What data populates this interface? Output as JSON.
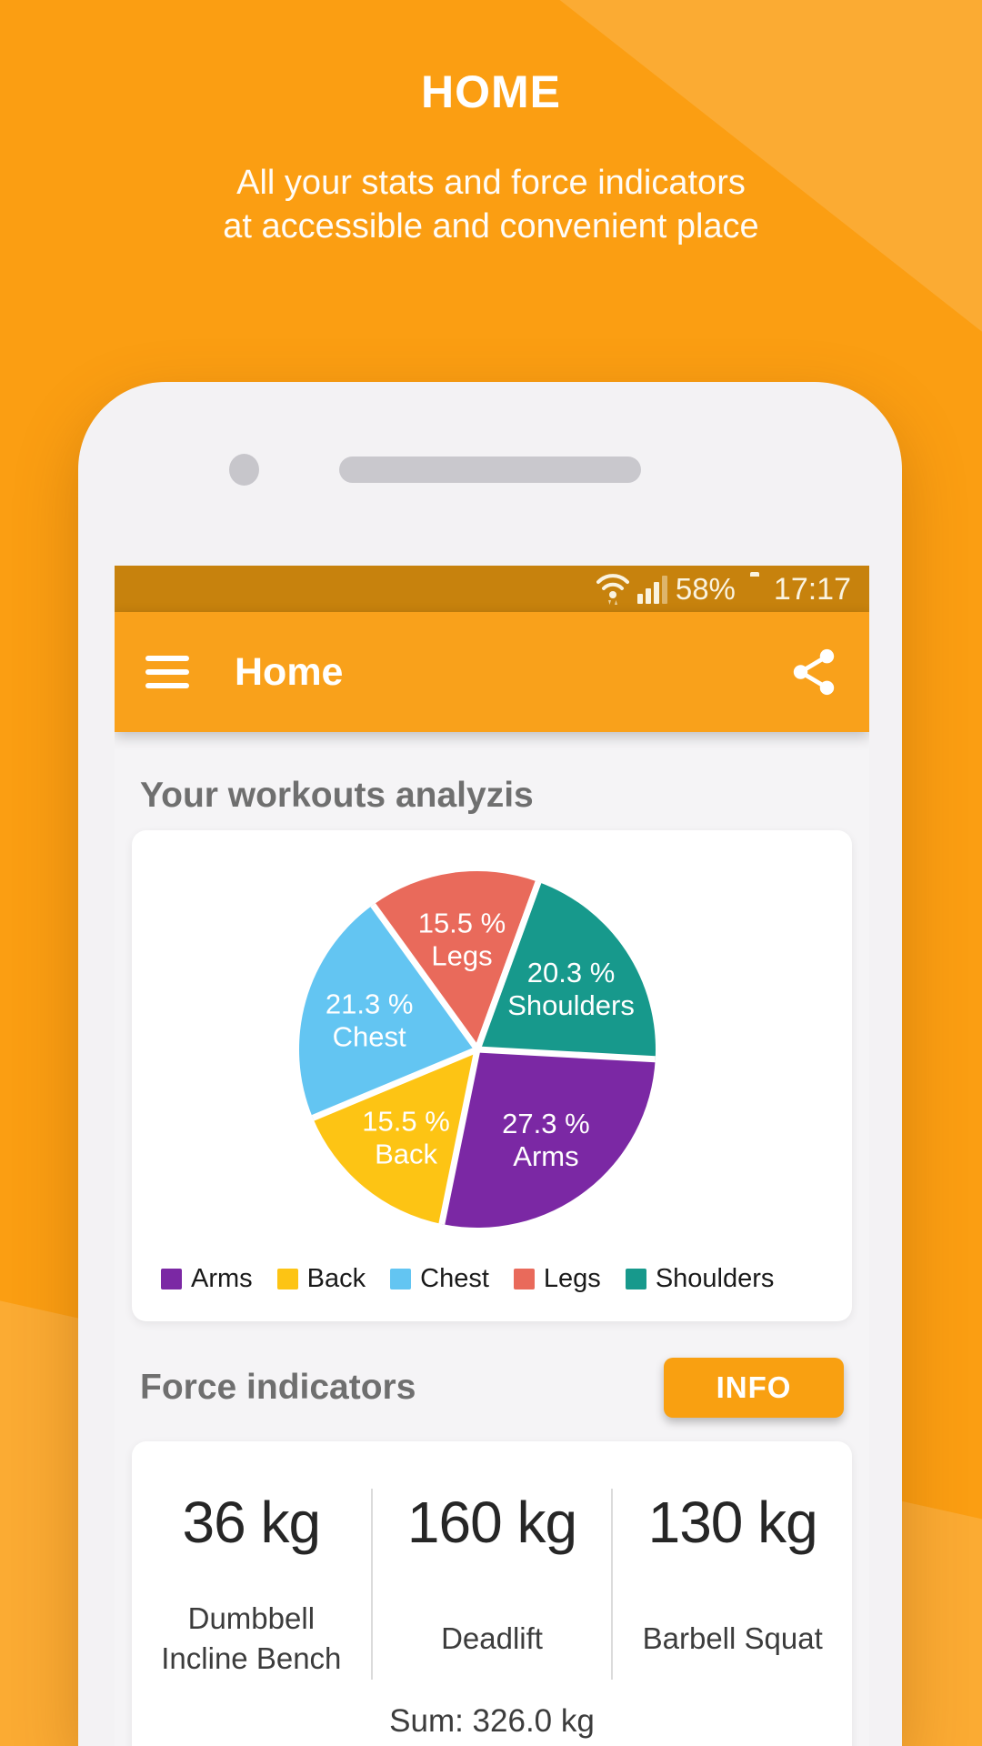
{
  "promo": {
    "title": "HOME",
    "subtitle_line1": "All your stats and force indicators",
    "subtitle_line2": "at accessible and convenient place"
  },
  "status_bar": {
    "battery_percent": "58%",
    "time": "17:17",
    "icons": [
      "wifi-icon",
      "signal-bars-icon",
      "battery-icon"
    ]
  },
  "app_bar": {
    "title": "Home",
    "icons": [
      "hamburger-menu-icon",
      "share-icon"
    ]
  },
  "sections": {
    "workouts_title": "Your workouts analyzis",
    "force_title": "Force indicators",
    "info_button_label": "INFO"
  },
  "chart_data": {
    "type": "pie",
    "title": "Your workouts analyzis",
    "start_angle_deg": 20,
    "slices": [
      {
        "label": "Shoulders",
        "value": "20.3",
        "color": "#17998C"
      },
      {
        "label": "Arms",
        "value": "27.3",
        "color": "#7B28A4"
      },
      {
        "label": "Back",
        "value": "15.5",
        "color": "#FDC414"
      },
      {
        "label": "Chest",
        "value": "21.3",
        "color": "#63C5F2"
      },
      {
        "label": "Legs",
        "value": "15.5",
        "color": "#E96A5B"
      }
    ],
    "slice_label_suffix": " %",
    "legend": [
      {
        "label": "Arms",
        "color": "#7B28A4"
      },
      {
        "label": "Back",
        "color": "#FDC414"
      },
      {
        "label": "Chest",
        "color": "#63C5F2"
      },
      {
        "label": "Legs",
        "color": "#E96A5B"
      },
      {
        "label": "Shoulders",
        "color": "#17998C"
      }
    ],
    "legend_position": "bottom"
  },
  "force_indicators": {
    "items": [
      {
        "value": "36 kg",
        "label": "Dumbbell Incline Bench"
      },
      {
        "value": "160 kg",
        "label": "Deadlift"
      },
      {
        "value": "130 kg",
        "label": "Barbell Squat"
      }
    ],
    "sum": "Sum: 326.0 kg"
  },
  "colors": {
    "background": "#FB9E12",
    "status_bar": "#C7820D",
    "app_bar": "#F9A11B",
    "accent_button": "#F9A011",
    "content_bg": "#F5F4F6",
    "header_text": "#6F6F6F"
  }
}
